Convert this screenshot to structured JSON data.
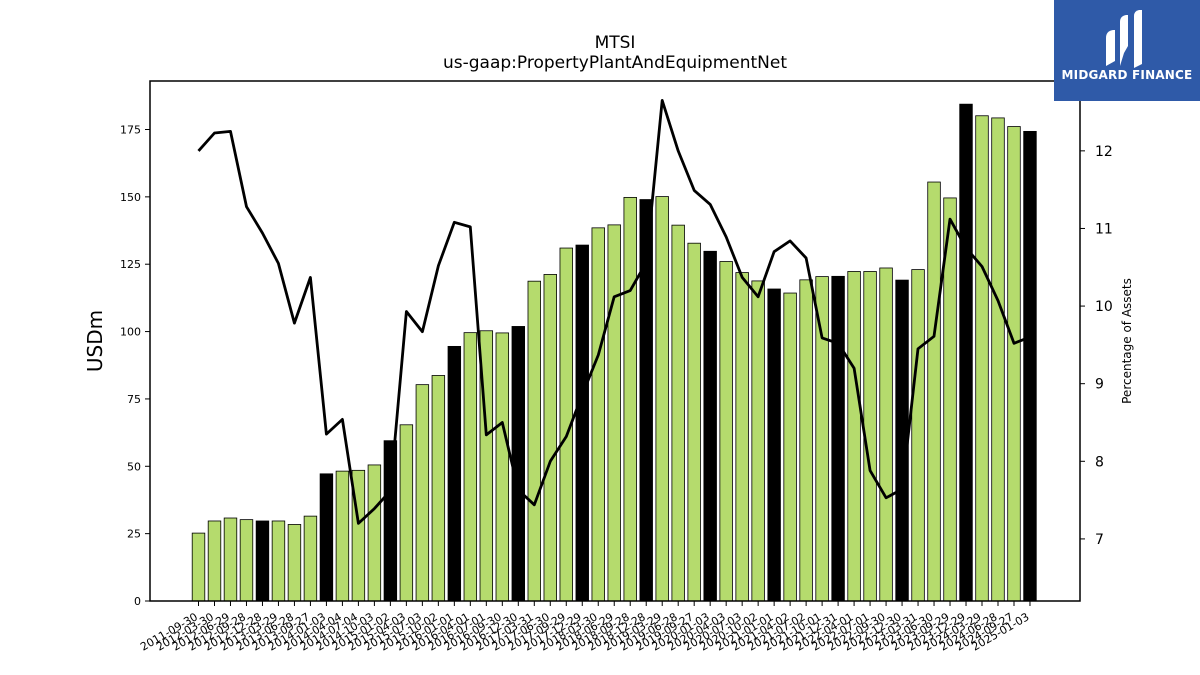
{
  "logo": {
    "text": "MIDGARD FINANCE"
  },
  "chart_data": {
    "type": "bar",
    "title": "MTSI",
    "subtitle": "us-gaap:PropertyPlantAndEquipmentNet",
    "ylabel": "USDm",
    "y2label": "Percentage of Assets",
    "ylim": [
      0,
      193
    ],
    "y2lim": [
      6.2,
      12.9
    ],
    "yticks": [
      0,
      25,
      50,
      75,
      100,
      125,
      150,
      175
    ],
    "y2ticks": [
      7,
      8,
      9,
      10,
      11,
      12
    ],
    "bar_color": "#b5db6d",
    "highlight_color": "#000000",
    "line_color": "#000000",
    "categories": [
      "2011-09-30",
      "2012-03-30",
      "2012-06-29",
      "2012-09-28",
      "2012-12-28",
      "2013-03-29",
      "2013-06-28",
      "2013-09-27",
      "2014-01-03",
      "2014-04-04",
      "2014-07-04",
      "2014-10-03",
      "2015-01-02",
      "2015-04-03",
      "2015-07-03",
      "2015-10-02",
      "2016-01-01",
      "2016-04-01",
      "2016-07-01",
      "2016-09-30",
      "2016-12-30",
      "2017-03-31",
      "2017-06-30",
      "2017-09-29",
      "2017-12-29",
      "2018-03-30",
      "2018-06-29",
      "2018-09-28",
      "2018-12-28",
      "2019-03-29",
      "2019-06-28",
      "2019-09-27",
      "2020-01-03",
      "2020-04-03",
      "2020-07-03",
      "2020-10-02",
      "2021-01-01",
      "2021-04-02",
      "2021-07-02",
      "2021-10-01",
      "2021-12-31",
      "2022-04-01",
      "2022-07-01",
      "2022-09-30",
      "2022-12-30",
      "2023-03-31",
      "2023-06-30",
      "2023-09-29",
      "2023-12-29",
      "2024-03-29",
      "2024-06-28",
      "2024-09-27",
      "2025-01-03"
    ],
    "visible_xticks": [
      "2011-09-30",
      "2012-03-30",
      "2012-06-29",
      "2012-09-28",
      "2012-12-28",
      "2013-03-29",
      "2013-06-28",
      "2013-09-27",
      "2014-01-03",
      "2014-04-04",
      "2014-07-04",
      "2014-10-03",
      "2015-01-02",
      "2015-04-03",
      "2015-07-03",
      "2015-10-02",
      "2016-01-01",
      "2016-04-01",
      "2016-07-01",
      "2016-09-30",
      "2016-12-30",
      "2017-03-31",
      "2017-06-30",
      "2017-09-29",
      "2017-12-29",
      "2018-03-30",
      "2018-06-29",
      "2018-09-28",
      "2018-12-28",
      "2019-03-29",
      "2019-06-28",
      "2019-09-27",
      "2020-01-03",
      "2020-04-03",
      "2020-07-03",
      "2020-10-02",
      "2021-01-01",
      "2021-04-02",
      "2021-07-02",
      "2021-10-01",
      "2021-12-31",
      "2022-04-01",
      "2022-07-01",
      "2022-09-30",
      "2022-12-30",
      "2023-03-31",
      "2023-06-30",
      "2023-09-29",
      "2023-12-29",
      "2024-03-29",
      "2024-06-28",
      "2024-09-27",
      "2025-01-03"
    ],
    "values": [
      25.2,
      29.7,
      30.8,
      30.2,
      29.7,
      29.7,
      28.4,
      31.5,
      47.2,
      48.2,
      48.5,
      50.5,
      59.5,
      65.4,
      80.3,
      83.7,
      94.5,
      99.6,
      100.3,
      99.5,
      101.9,
      118.7,
      121.2,
      131,
      132.1,
      138.5,
      139.6,
      149.8,
      149,
      150.1,
      139.5,
      132.8,
      129.8,
      126,
      121.9,
      118.8,
      115.8,
      114.3,
      119.2,
      120.4,
      120.5,
      122.3,
      122.3,
      123.6,
      119.1,
      123,
      155.5,
      149.6,
      184.4,
      180.1,
      179.3,
      176.1,
      174.3
    ],
    "highlight": [
      false,
      false,
      false,
      false,
      true,
      false,
      false,
      false,
      true,
      false,
      false,
      false,
      true,
      false,
      false,
      false,
      true,
      false,
      false,
      false,
      true,
      false,
      false,
      false,
      true,
      false,
      false,
      false,
      true,
      false,
      false,
      false,
      true,
      false,
      false,
      false,
      true,
      false,
      false,
      false,
      true,
      false,
      false,
      false,
      true,
      false,
      false,
      false,
      true,
      false,
      false,
      false,
      true
    ],
    "line_values": [
      12.0,
      12.23,
      12.25,
      11.28,
      10.94,
      10.55,
      9.78,
      10.37,
      8.35,
      8.54,
      7.2,
      7.39,
      7.62,
      9.93,
      9.67,
      10.52,
      11.08,
      11.02,
      8.34,
      8.5,
      7.63,
      7.44,
      8.0,
      8.32,
      8.86,
      9.37,
      10.12,
      10.2,
      10.56,
      12.65,
      12.0,
      11.49,
      11.31,
      10.89,
      10.37,
      10.12,
      10.7,
      10.84,
      10.62,
      9.59,
      9.52,
      9.2,
      7.88,
      7.53,
      7.64,
      9.45,
      9.61,
      11.12,
      10.75,
      10.51,
      10.07,
      9.52,
      9.6
    ]
  }
}
